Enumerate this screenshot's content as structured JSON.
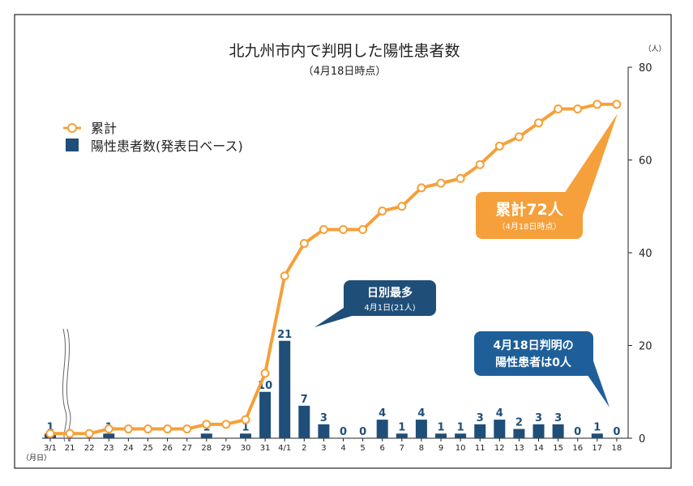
{
  "colors": {
    "bar": "#1f4e79",
    "line": "#f5a03a",
    "marker_fill": "#ffffff",
    "bubble_blue": "#1f4e79",
    "bubble_orange": "#f5a03a",
    "frame": "#222222"
  },
  "chart_data": {
    "type": "bar",
    "title": "北九州市内で判明した陽性患者数",
    "subtitle": "（4月18日時点）",
    "y_unit": "（人）",
    "x_unit": "（月日）",
    "ylim": [
      0,
      80
    ],
    "yticks": [
      0,
      20,
      40,
      60,
      80
    ],
    "grid": false,
    "legend_position": "top-left",
    "categories": [
      "3/1",
      "21",
      "22",
      "23",
      "24",
      "25",
      "26",
      "27",
      "28",
      "29",
      "30",
      "31",
      "4/1",
      "2",
      "3",
      "4",
      "5",
      "6",
      "7",
      "8",
      "9",
      "10",
      "11",
      "12",
      "13",
      "14",
      "15",
      "16",
      "17",
      "18"
    ],
    "series": [
      {
        "name": "陽性患者数(発表日ベース)",
        "type": "bar",
        "values": [
          1,
          0,
          0,
          1,
          0,
          0,
          0,
          0,
          1,
          0,
          1,
          10,
          21,
          7,
          3,
          0,
          0,
          4,
          1,
          4,
          1,
          1,
          3,
          4,
          2,
          3,
          3,
          0,
          1,
          0
        ],
        "labels": [
          "1",
          "",
          "",
          "1",
          "",
          "",
          "",
          "",
          "1",
          "",
          "1",
          "10",
          "21",
          "7",
          "3",
          "0",
          "0",
          "4",
          "1",
          "4",
          "1",
          "1",
          "3",
          "4",
          "2",
          "3",
          "3",
          "0",
          "1",
          "0"
        ]
      },
      {
        "name": "累計",
        "type": "line",
        "values": [
          1,
          1,
          1,
          2,
          2,
          2,
          2,
          2,
          3,
          3,
          4,
          14,
          35,
          42,
          45,
          45,
          45,
          49,
          50,
          54,
          55,
          56,
          59,
          63,
          65,
          68,
          71,
          71,
          72,
          72
        ]
      }
    ],
    "annotations": {
      "total": {
        "title": "累計72人",
        "sub": "（4月18日時点）"
      },
      "max_day": {
        "title": "日別最多",
        "sub": "4月1日(21人)"
      },
      "today": {
        "line1": "4月18日判明の",
        "line2": "陽性患者は0人"
      }
    }
  }
}
